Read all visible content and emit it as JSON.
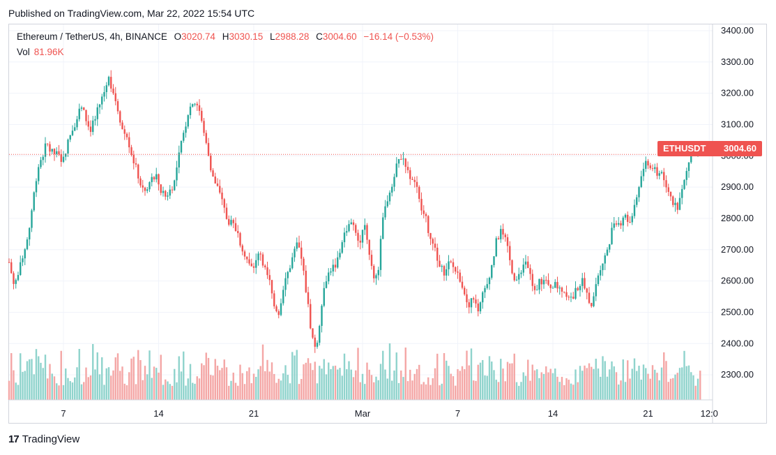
{
  "header": {
    "published": "Published on TradingView.com, Mar 22, 2022 15:54 UTC"
  },
  "legend": {
    "symbol": "Ethereum / TetherUS, 4h, BINANCE",
    "o_label": "O",
    "o": "3020.74",
    "h_label": "H",
    "h": "3030.15",
    "l_label": "L",
    "l": "2988.28",
    "c_label": "C",
    "c": "3004.60",
    "change": "−16.14 (−0.53%)",
    "vol_label": "Vol",
    "vol": "81.96K"
  },
  "price_tag": {
    "symbol": "ETHUSDT",
    "price": "3004.60"
  },
  "footer": {
    "brand": "TradingView"
  },
  "colors": {
    "up": "#26a69a",
    "down": "#ef5350",
    "up_vol": "#8fd3cc",
    "down_vol": "#f4a6a5",
    "grid": "#f0f3fa",
    "text": "#131722"
  },
  "chart_data": {
    "type": "candlestick",
    "interval": "4h",
    "ylim": [
      2220,
      3420
    ],
    "y_ticks": [
      2300,
      2400,
      2500,
      2600,
      2700,
      2800,
      2900,
      3000,
      3100,
      3200,
      3300,
      3400
    ],
    "y_tick_labels": [
      "2300.00",
      "2400.00",
      "2500.00",
      "2600.00",
      "2700.00",
      "2800.00",
      "2900.00",
      "3000.00",
      "3100.00",
      "3200.00",
      "3300.00",
      "3400.00"
    ],
    "x_ticks": [
      {
        "label": "7",
        "day": 7
      },
      {
        "label": "14",
        "day": 14
      },
      {
        "label": "21",
        "day": 21
      },
      {
        "label": "Mar",
        "day": 29
      },
      {
        "label": "7",
        "day": 36
      },
      {
        "label": "14",
        "day": 43
      },
      {
        "label": "21",
        "day": 50
      },
      {
        "label": "12:0",
        "day": 54.5
      }
    ],
    "start_day": 3,
    "last_close": 3004.6,
    "grid": true,
    "close_path": [
      [
        0,
        2660
      ],
      [
        1,
        2590
      ],
      [
        2,
        2620
      ],
      [
        3,
        2690
      ],
      [
        4,
        2740
      ],
      [
        5,
        2850
      ],
      [
        6,
        2960
      ],
      [
        7,
        3000
      ],
      [
        8,
        3040
      ],
      [
        9,
        3010
      ],
      [
        10,
        3005
      ],
      [
        11,
        2990
      ],
      [
        12,
        3020
      ],
      [
        13,
        3070
      ],
      [
        14,
        3110
      ],
      [
        15,
        3160
      ],
      [
        16,
        3130
      ],
      [
        17,
        3080
      ],
      [
        18,
        3110
      ],
      [
        19,
        3160
      ],
      [
        20,
        3200
      ],
      [
        21,
        3250
      ],
      [
        22,
        3210
      ],
      [
        23,
        3150
      ],
      [
        24,
        3080
      ],
      [
        25,
        3060
      ],
      [
        26,
        3000
      ],
      [
        27,
        2950
      ],
      [
        28,
        2900
      ],
      [
        29,
        2880
      ],
      [
        30,
        2930
      ],
      [
        31,
        2940
      ],
      [
        32,
        2890
      ],
      [
        33,
        2870
      ],
      [
        34,
        2890
      ],
      [
        35,
        2920
      ],
      [
        36,
        3010
      ],
      [
        37,
        3080
      ],
      [
        38,
        3150
      ],
      [
        39,
        3175
      ],
      [
        40,
        3160
      ],
      [
        41,
        3080
      ],
      [
        42,
        3020
      ],
      [
        43,
        2930
      ],
      [
        44,
        2900
      ],
      [
        45,
        2850
      ],
      [
        46,
        2800
      ],
      [
        47,
        2780
      ],
      [
        48,
        2760
      ],
      [
        49,
        2720
      ],
      [
        50,
        2680
      ],
      [
        51,
        2640
      ],
      [
        52,
        2650
      ],
      [
        53,
        2700
      ],
      [
        54,
        2640
      ],
      [
        55,
        2600
      ],
      [
        56,
        2520
      ],
      [
        57,
        2500
      ],
      [
        58,
        2590
      ],
      [
        59,
        2630
      ],
      [
        60,
        2680
      ],
      [
        61,
        2720
      ],
      [
        62,
        2650
      ],
      [
        63,
        2540
      ],
      [
        64,
        2420
      ],
      [
        65,
        2380
      ],
      [
        66,
        2530
      ],
      [
        67,
        2610
      ],
      [
        68,
        2640
      ],
      [
        69,
        2650
      ],
      [
        70,
        2700
      ],
      [
        71,
        2760
      ],
      [
        72,
        2790
      ],
      [
        73,
        2760
      ],
      [
        74,
        2720
      ],
      [
        75,
        2800
      ],
      [
        76,
        2700
      ],
      [
        77,
        2610
      ],
      [
        78,
        2640
      ],
      [
        79,
        2800
      ],
      [
        80,
        2870
      ],
      [
        81,
        2920
      ],
      [
        82,
        2980
      ],
      [
        83,
        3000
      ],
      [
        84,
        2970
      ],
      [
        85,
        2920
      ],
      [
        86,
        2900
      ],
      [
        87,
        2830
      ],
      [
        88,
        2800
      ],
      [
        89,
        2730
      ],
      [
        90,
        2700
      ],
      [
        91,
        2640
      ],
      [
        92,
        2630
      ],
      [
        93,
        2660
      ],
      [
        94,
        2640
      ],
      [
        95,
        2620
      ],
      [
        96,
        2580
      ],
      [
        97,
        2520
      ],
      [
        98,
        2560
      ],
      [
        99,
        2490
      ],
      [
        100,
        2550
      ],
      [
        101,
        2600
      ],
      [
        102,
        2650
      ],
      [
        103,
        2730
      ],
      [
        104,
        2760
      ],
      [
        105,
        2720
      ],
      [
        106,
        2650
      ],
      [
        107,
        2600
      ],
      [
        108,
        2620
      ],
      [
        109,
        2660
      ],
      [
        110,
        2620
      ],
      [
        111,
        2560
      ],
      [
        112,
        2600
      ],
      [
        113,
        2600
      ],
      [
        114,
        2580
      ],
      [
        115,
        2590
      ],
      [
        116,
        2580
      ],
      [
        117,
        2570
      ],
      [
        118,
        2560
      ],
      [
        119,
        2540
      ],
      [
        120,
        2580
      ],
      [
        121,
        2600
      ],
      [
        122,
        2560
      ],
      [
        123,
        2530
      ],
      [
        124,
        2600
      ],
      [
        125,
        2650
      ],
      [
        126,
        2680
      ],
      [
        127,
        2740
      ],
      [
        128,
        2800
      ],
      [
        129,
        2780
      ],
      [
        130,
        2820
      ],
      [
        131,
        2790
      ],
      [
        132,
        2820
      ],
      [
        133,
        2900
      ],
      [
        134,
        2960
      ],
      [
        135,
        2980
      ],
      [
        136,
        2960
      ],
      [
        137,
        2940
      ],
      [
        138,
        2950
      ],
      [
        139,
        2900
      ],
      [
        140,
        2860
      ],
      [
        141,
        2830
      ],
      [
        142,
        2880
      ],
      [
        143,
        2940
      ],
      [
        144,
        3010
      ],
      [
        145,
        3020
      ],
      [
        146,
        3004.6
      ]
    ],
    "volume_max_k": 180
  }
}
